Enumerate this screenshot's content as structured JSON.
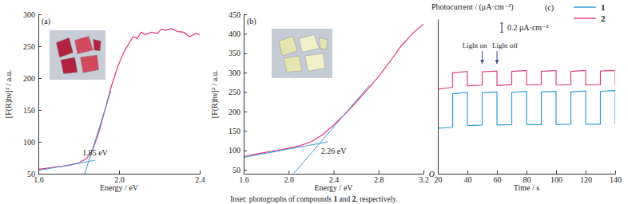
{
  "chart_data": [
    {
      "type": "line",
      "title": "(a)",
      "x_label": "Energy / eV",
      "y_label": "[F(R)hν]² / a.u.",
      "xlim": [
        1.6,
        2.4
      ],
      "ylim": [
        50,
        300
      ],
      "xticks": [
        1.6,
        {
          "value": 2,
          "label": "2.0"
        },
        2.4
      ],
      "yticks": [
        50,
        100,
        150,
        200,
        250,
        300
      ],
      "series": [
        {
          "color": "#e2347f",
          "x": [
            1.6,
            1.65,
            1.7,
            1.75,
            1.8,
            1.84,
            1.87,
            1.9,
            1.93,
            1.96,
            1.99,
            2.02,
            2.05,
            2.07,
            2.09,
            2.11,
            2.13,
            2.16,
            2.19,
            2.21,
            2.23,
            2.26,
            2.29,
            2.32,
            2.35,
            2.38,
            2.4
          ],
          "values": [
            57,
            59,
            61,
            63,
            67,
            74,
            88,
            115,
            150,
            185,
            215,
            238,
            255,
            265,
            262,
            272,
            268,
            272,
            270,
            277,
            275,
            278,
            273,
            272,
            265,
            270,
            268
          ]
        },
        {
          "color": "#3d9bd6",
          "x": [
            1.6,
            1.88
          ],
          "values": [
            55,
            71
          ]
        },
        {
          "color": "#3d9bd6",
          "x": [
            1.83,
            1.96
          ],
          "values": [
            50,
            180
          ]
        }
      ],
      "annotations": [
        {
          "text": "1.85 eV",
          "x": 1.85,
          "y": 69
        }
      ]
    },
    {
      "type": "line",
      "title": "(b)",
      "x_label": "Energy / eV",
      "y_label": "[F(R)hν]² / a.u.",
      "xlim": [
        1.6,
        3.2
      ],
      "ylim": [
        40,
        450
      ],
      "xticks": [
        1.6,
        {
          "value": 2,
          "label": "2.0"
        },
        2.4,
        2.8,
        3.2
      ],
      "yticks": [
        50,
        100,
        150,
        200,
        250,
        300,
        350,
        400,
        450
      ],
      "series": [
        {
          "color": "#e2347f",
          "x": [
            1.6,
            1.7,
            1.8,
            1.9,
            2.0,
            2.1,
            2.2,
            2.3,
            2.4,
            2.5,
            2.6,
            2.7,
            2.8,
            2.9,
            3.0,
            3.1,
            3.2
          ],
          "values": [
            84,
            90,
            95,
            100,
            106,
            112,
            122,
            140,
            165,
            193,
            224,
            256,
            290,
            328,
            368,
            400,
            425
          ]
        },
        {
          "color": "#3d9bd6",
          "x": [
            1.6,
            2.35
          ],
          "values": [
            82,
            122
          ]
        },
        {
          "color": "#3d9bd6",
          "x": [
            2.05,
            2.72
          ],
          "values": [
            42,
            268
          ]
        }
      ],
      "annotations": [
        {
          "text": "2.26 eV",
          "x": 2.26,
          "y": 115
        }
      ]
    },
    {
      "type": "line",
      "title": "(c)",
      "x_label": "Time / s",
      "y_label": "Photocurrent / (μA·cm⁻²)",
      "xlim": [
        20,
        140
      ],
      "ylim": [
        0,
        3.4
      ],
      "xticks": [
        20,
        40,
        60,
        80,
        100,
        120,
        140
      ],
      "yticks": [
        {
          "value": 0,
          "label": "O"
        }
      ],
      "legend": "upper right",
      "series": [
        {
          "name": "1",
          "color": "#2f9ed8",
          "x": [
            20,
            30,
            30,
            40,
            40,
            50,
            50,
            60,
            60,
            70,
            70,
            80,
            80,
            90,
            90,
            100,
            100,
            110,
            110,
            120,
            120,
            130,
            130,
            140,
            140
          ],
          "values": [
            1.0,
            1.02,
            1.76,
            1.79,
            1.06,
            1.07,
            1.78,
            1.8,
            1.07,
            1.08,
            1.79,
            1.81,
            1.08,
            1.08,
            1.8,
            1.81,
            1.08,
            1.09,
            1.8,
            1.82,
            1.09,
            1.09,
            1.81,
            1.83,
            1.09
          ]
        },
        {
          "name": "2",
          "color": "#e0418b",
          "x": [
            20,
            30,
            30,
            40,
            40,
            50,
            50,
            60,
            60,
            70,
            70,
            80,
            80,
            90,
            90,
            100,
            100,
            110,
            110,
            120,
            120,
            130,
            130,
            140,
            140
          ],
          "values": [
            1.86,
            1.9,
            2.22,
            2.25,
            1.93,
            1.95,
            2.24,
            2.26,
            1.94,
            1.96,
            2.25,
            2.27,
            1.95,
            1.96,
            2.25,
            2.27,
            1.95,
            1.96,
            2.25,
            2.27,
            1.95,
            1.96,
            2.26,
            2.27,
            1.95
          ]
        }
      ],
      "scale_bar": {
        "value": 0.2,
        "label": "0.2 μA·cm⁻²"
      },
      "annotations": [
        {
          "text": "Light on",
          "x": 50
        },
        {
          "text": "Light off",
          "x": 60
        }
      ]
    }
  ],
  "caption": [
    "Inset: photographs of compounds ",
    "1",
    " and ",
    "2",
    ", respectively."
  ]
}
